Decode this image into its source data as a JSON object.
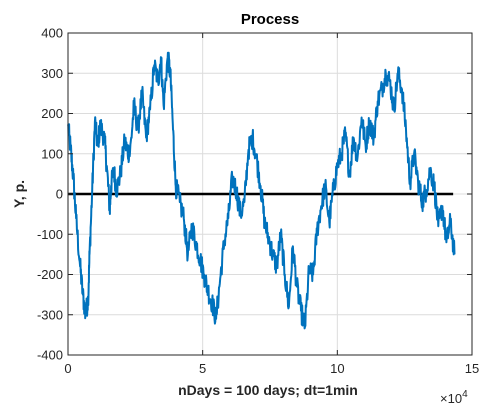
{
  "chart_data": {
    "type": "line",
    "title": "Process",
    "xlabel": "nDays = 100 days;  dt=1min",
    "ylabel": "Y, p.",
    "x_exponent_label": "×10",
    "x_exponent_power": "4",
    "xlim": [
      0,
      15
    ],
    "ylim": [
      -400,
      400
    ],
    "x_ticks": [
      0,
      5,
      10,
      15
    ],
    "x_tick_labels": [
      "0",
      "5",
      "10",
      "15"
    ],
    "y_ticks": [
      -400,
      -300,
      -200,
      -100,
      0,
      100,
      200,
      300,
      400
    ],
    "y_tick_labels": [
      "-400",
      "-300",
      "-200",
      "-100",
      "0",
      "100",
      "200",
      "300",
      "400"
    ],
    "x_scale_note": "x values in units of 10^4 (minutes)",
    "grid": true,
    "reference_line": {
      "y": 0,
      "color": "#000000"
    },
    "series": [
      {
        "color": "#0072BD",
        "x": [
          0.0,
          0.1,
          0.2,
          0.3,
          0.45,
          0.55,
          0.65,
          0.75,
          0.8,
          0.9,
          1.0,
          1.1,
          1.2,
          1.35,
          1.45,
          1.55,
          1.6,
          1.7,
          1.8,
          1.95,
          2.1,
          2.2,
          2.3,
          2.45,
          2.6,
          2.75,
          2.9,
          3.05,
          3.2,
          3.35,
          3.45,
          3.55,
          3.7,
          3.8,
          3.9,
          4.0,
          4.15,
          4.3,
          4.45,
          4.6,
          4.75,
          4.9,
          5.05,
          5.2,
          5.35,
          5.5,
          5.65,
          5.8,
          5.95,
          6.1,
          6.25,
          6.4,
          6.55,
          6.7,
          6.85,
          7.0,
          7.15,
          7.3,
          7.45,
          7.6,
          7.75,
          7.9,
          8.05,
          8.2,
          8.35,
          8.5,
          8.65,
          8.8,
          8.95,
          9.1,
          9.25,
          9.4,
          9.55,
          9.7,
          9.85,
          10.0,
          10.15,
          10.3,
          10.45,
          10.6,
          10.75,
          10.9,
          11.05,
          11.2,
          11.35,
          11.5,
          11.65,
          11.8,
          11.95,
          12.1,
          12.25,
          12.4,
          12.55,
          12.7,
          12.85,
          13.0,
          13.15,
          13.3,
          13.45,
          13.6,
          13.75,
          13.9,
          14.05,
          14.2,
          14.35
        ],
        "values": [
          170,
          110,
          40,
          -60,
          -180,
          -250,
          -300,
          -260,
          -150,
          10,
          180,
          120,
          170,
          140,
          60,
          -40,
          20,
          60,
          10,
          50,
          130,
          110,
          100,
          220,
          160,
          250,
          140,
          210,
          320,
          280,
          340,
          220,
          340,
          300,
          160,
          20,
          -20,
          -60,
          -150,
          -80,
          -120,
          -160,
          -200,
          -240,
          -270,
          -310,
          -210,
          -120,
          -60,
          40,
          10,
          -50,
          -20,
          110,
          140,
          90,
          20,
          -70,
          -110,
          -150,
          -180,
          -100,
          -200,
          -280,
          -130,
          -230,
          -290,
          -330,
          -190,
          -200,
          -90,
          -30,
          20,
          -70,
          10,
          70,
          100,
          150,
          50,
          140,
          90,
          190,
          120,
          180,
          140,
          230,
          260,
          300,
          280,
          210,
          300,
          260,
          160,
          30,
          100,
          30,
          -20,
          10,
          60,
          20,
          -80,
          -30,
          -120,
          -70,
          -150
        ]
      }
    ]
  }
}
